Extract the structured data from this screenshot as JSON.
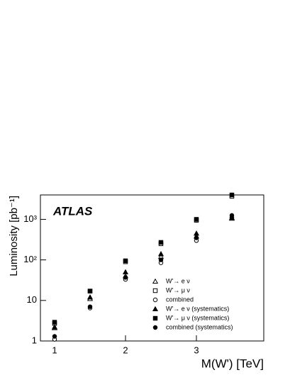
{
  "chart_data": {
    "type": "scatter",
    "annotation": "ATLAS",
    "x_label": "M(W') [TeV]",
    "y_label": "Luminosity [pb⁻¹]",
    "x": [
      1,
      1.5,
      2,
      2.5,
      3,
      3.5
    ],
    "series": [
      {
        "name": "W'→ e ν",
        "color": "#000000",
        "marker": "triangle-open",
        "values": [
          2.1,
          11,
          40,
          120,
          380,
          1050
        ]
      },
      {
        "name": "W'→ μ ν",
        "color": "#000000",
        "marker": "square-open",
        "values": [
          2.7,
          17,
          90,
          250,
          950,
          3700
        ]
      },
      {
        "name": "combined",
        "color": "#000000",
        "marker": "circle-open",
        "values": [
          1.1,
          6.5,
          33,
          85,
          300,
          1100
        ]
      },
      {
        "name": "W'→ e ν (systematics)",
        "color": "#000000",
        "marker": "triangle-filled",
        "values": [
          2.2,
          12,
          50,
          140,
          450,
          1100
        ]
      },
      {
        "name": "W'→ μ ν (systematics)",
        "color": "#000000",
        "marker": "square-filled",
        "values": [
          2.9,
          17,
          95,
          270,
          1000,
          4000
        ]
      },
      {
        "name": "combined (systematics)",
        "color": "#000000",
        "marker": "circle-filled",
        "values": [
          1.3,
          7,
          37,
          100,
          350,
          1250
        ]
      }
    ],
    "xlim": [
      0.8,
      3.95
    ],
    "xticks": [
      1,
      2,
      3
    ],
    "ylim": [
      1,
      4000
    ],
    "yticks": [
      1,
      10,
      {
        "value": 100,
        "label": "10²"
      },
      {
        "value": 1000,
        "label": "10³"
      }
    ],
    "log_y": true,
    "legend": "lower right"
  }
}
